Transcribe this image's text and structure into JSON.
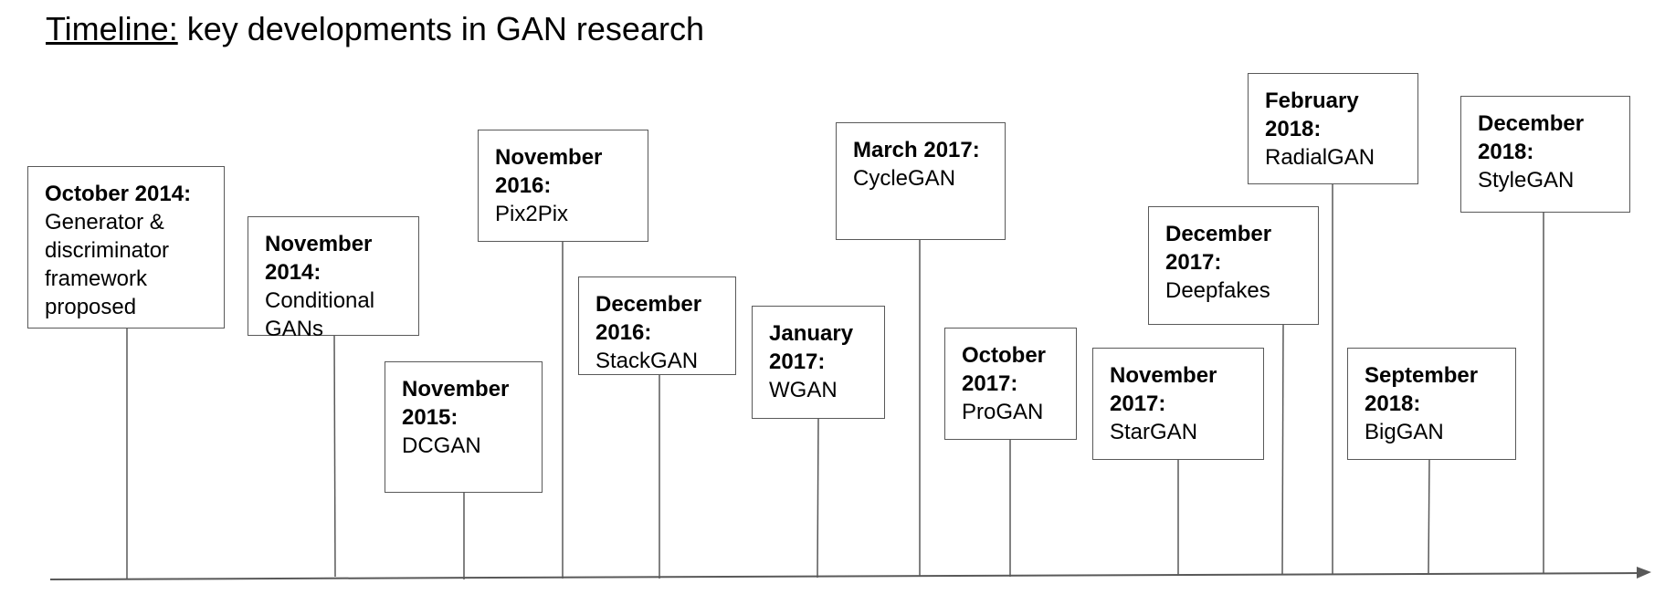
{
  "title": {
    "heading": "Timeline:",
    "rest": "key developments in GAN research"
  },
  "events": [
    {
      "date": "October 2014:",
      "desc": "Generator & discriminator framework proposed"
    },
    {
      "date": "November 2014:",
      "desc": "Conditional GANs"
    },
    {
      "date": "November 2015:",
      "desc": "DCGAN"
    },
    {
      "date": "November 2016:",
      "desc": "Pix2Pix"
    },
    {
      "date": "December 2016:",
      "desc": "StackGAN"
    },
    {
      "date": "January 2017:",
      "desc": "WGAN"
    },
    {
      "date": "March 2017:",
      "desc": "CycleGAN"
    },
    {
      "date": "October 2017:",
      "desc": "ProGAN"
    },
    {
      "date": "November 2017:",
      "desc": "StarGAN"
    },
    {
      "date": "December 2017:",
      "desc": "Deepfakes"
    },
    {
      "date": "February 2018:",
      "desc": "RadialGAN"
    },
    {
      "date": "September 2018:",
      "desc": "BigGAN"
    },
    {
      "date": "December 2018:",
      "desc": "StyleGAN"
    }
  ]
}
